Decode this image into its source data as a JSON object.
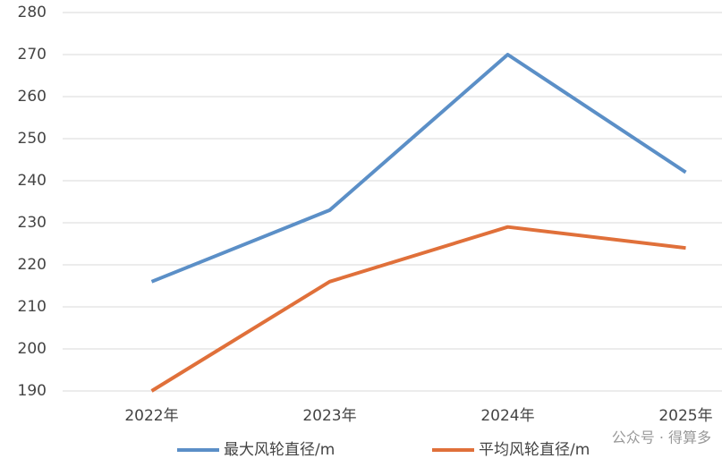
{
  "chart_data": {
    "type": "line",
    "categories": [
      "2022年",
      "2023年",
      "2024年",
      "2025年"
    ],
    "series": [
      {
        "name": "最大风轮直径/m",
        "color": "#5b8fc7",
        "values": [
          216,
          233,
          270,
          242
        ]
      },
      {
        "name": "平均风轮直径/m",
        "color": "#e0703a",
        "values": [
          190,
          216,
          229,
          224
        ]
      }
    ],
    "ylim": [
      190,
      280
    ],
    "yticks": [
      190,
      200,
      210,
      220,
      230,
      240,
      250,
      260,
      270,
      280
    ],
    "grid": true,
    "legend": "bottom",
    "watermark": "公众号 · 得算多"
  }
}
